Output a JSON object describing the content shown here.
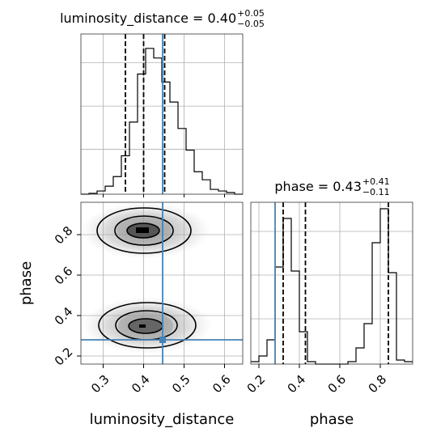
{
  "chart_data": [
    {
      "type": "histogram",
      "title": "luminosity_distance = 0.40",
      "title_sup": "+0.05",
      "title_sub": "−0.05",
      "bins": [
        0.245,
        0.265,
        0.285,
        0.305,
        0.325,
        0.345,
        0.365,
        0.385,
        0.405,
        0.425,
        0.445,
        0.465,
        0.485,
        0.505,
        0.525,
        0.545,
        0.565,
        0.585,
        0.605,
        0.625,
        0.645
      ],
      "counts": [
        0,
        1,
        4,
        10,
        22,
        48,
        90,
        150,
        182,
        170,
        140,
        115,
        82,
        55,
        28,
        18,
        6,
        4,
        2,
        0
      ],
      "xlim": [
        0.245,
        0.645
      ],
      "ylim": [
        0,
        200
      ],
      "quantiles": [
        0.355,
        0.4,
        0.452
      ],
      "truth": 0.447,
      "color": "#000000",
      "truth_color": "#4682b4",
      "grid": true
    },
    {
      "type": "density2d",
      "xlabel": "luminosity_distance",
      "ylabel": "phase",
      "xlim": [
        0.245,
        0.645
      ],
      "ylim": [
        0.16,
        0.96
      ],
      "xticks": [
        0.3,
        0.4,
        0.5,
        0.6
      ],
      "yticks": [
        0.2,
        0.4,
        0.6,
        0.8
      ],
      "truth_x": 0.447,
      "truth_y": 0.28,
      "truth_color": "#4682b4",
      "grid": true
    },
    {
      "type": "histogram",
      "title": "phase = 0.43",
      "title_sup": "+0.41",
      "title_sub": "−0.11",
      "xlabel": "phase",
      "bins": [
        0.16,
        0.2,
        0.24,
        0.28,
        0.32,
        0.36,
        0.4,
        0.44,
        0.48,
        0.52,
        0.56,
        0.6,
        0.64,
        0.68,
        0.72,
        0.76,
        0.8,
        0.84,
        0.88,
        0.92,
        0.96
      ],
      "counts": [
        3,
        10,
        30,
        120,
        180,
        115,
        40,
        3,
        0,
        0,
        0,
        0,
        3,
        20,
        50,
        150,
        192,
        113,
        5,
        3
      ],
      "xlim": [
        0.16,
        0.96
      ],
      "ylim": [
        0,
        200
      ],
      "xticks": [
        0.2,
        0.4,
        0.6,
        0.8
      ],
      "quantiles": [
        0.32,
        0.43,
        0.84
      ],
      "truth": 0.28,
      "color": "#000000",
      "truth_color": "#4682b4",
      "grid": true
    }
  ]
}
